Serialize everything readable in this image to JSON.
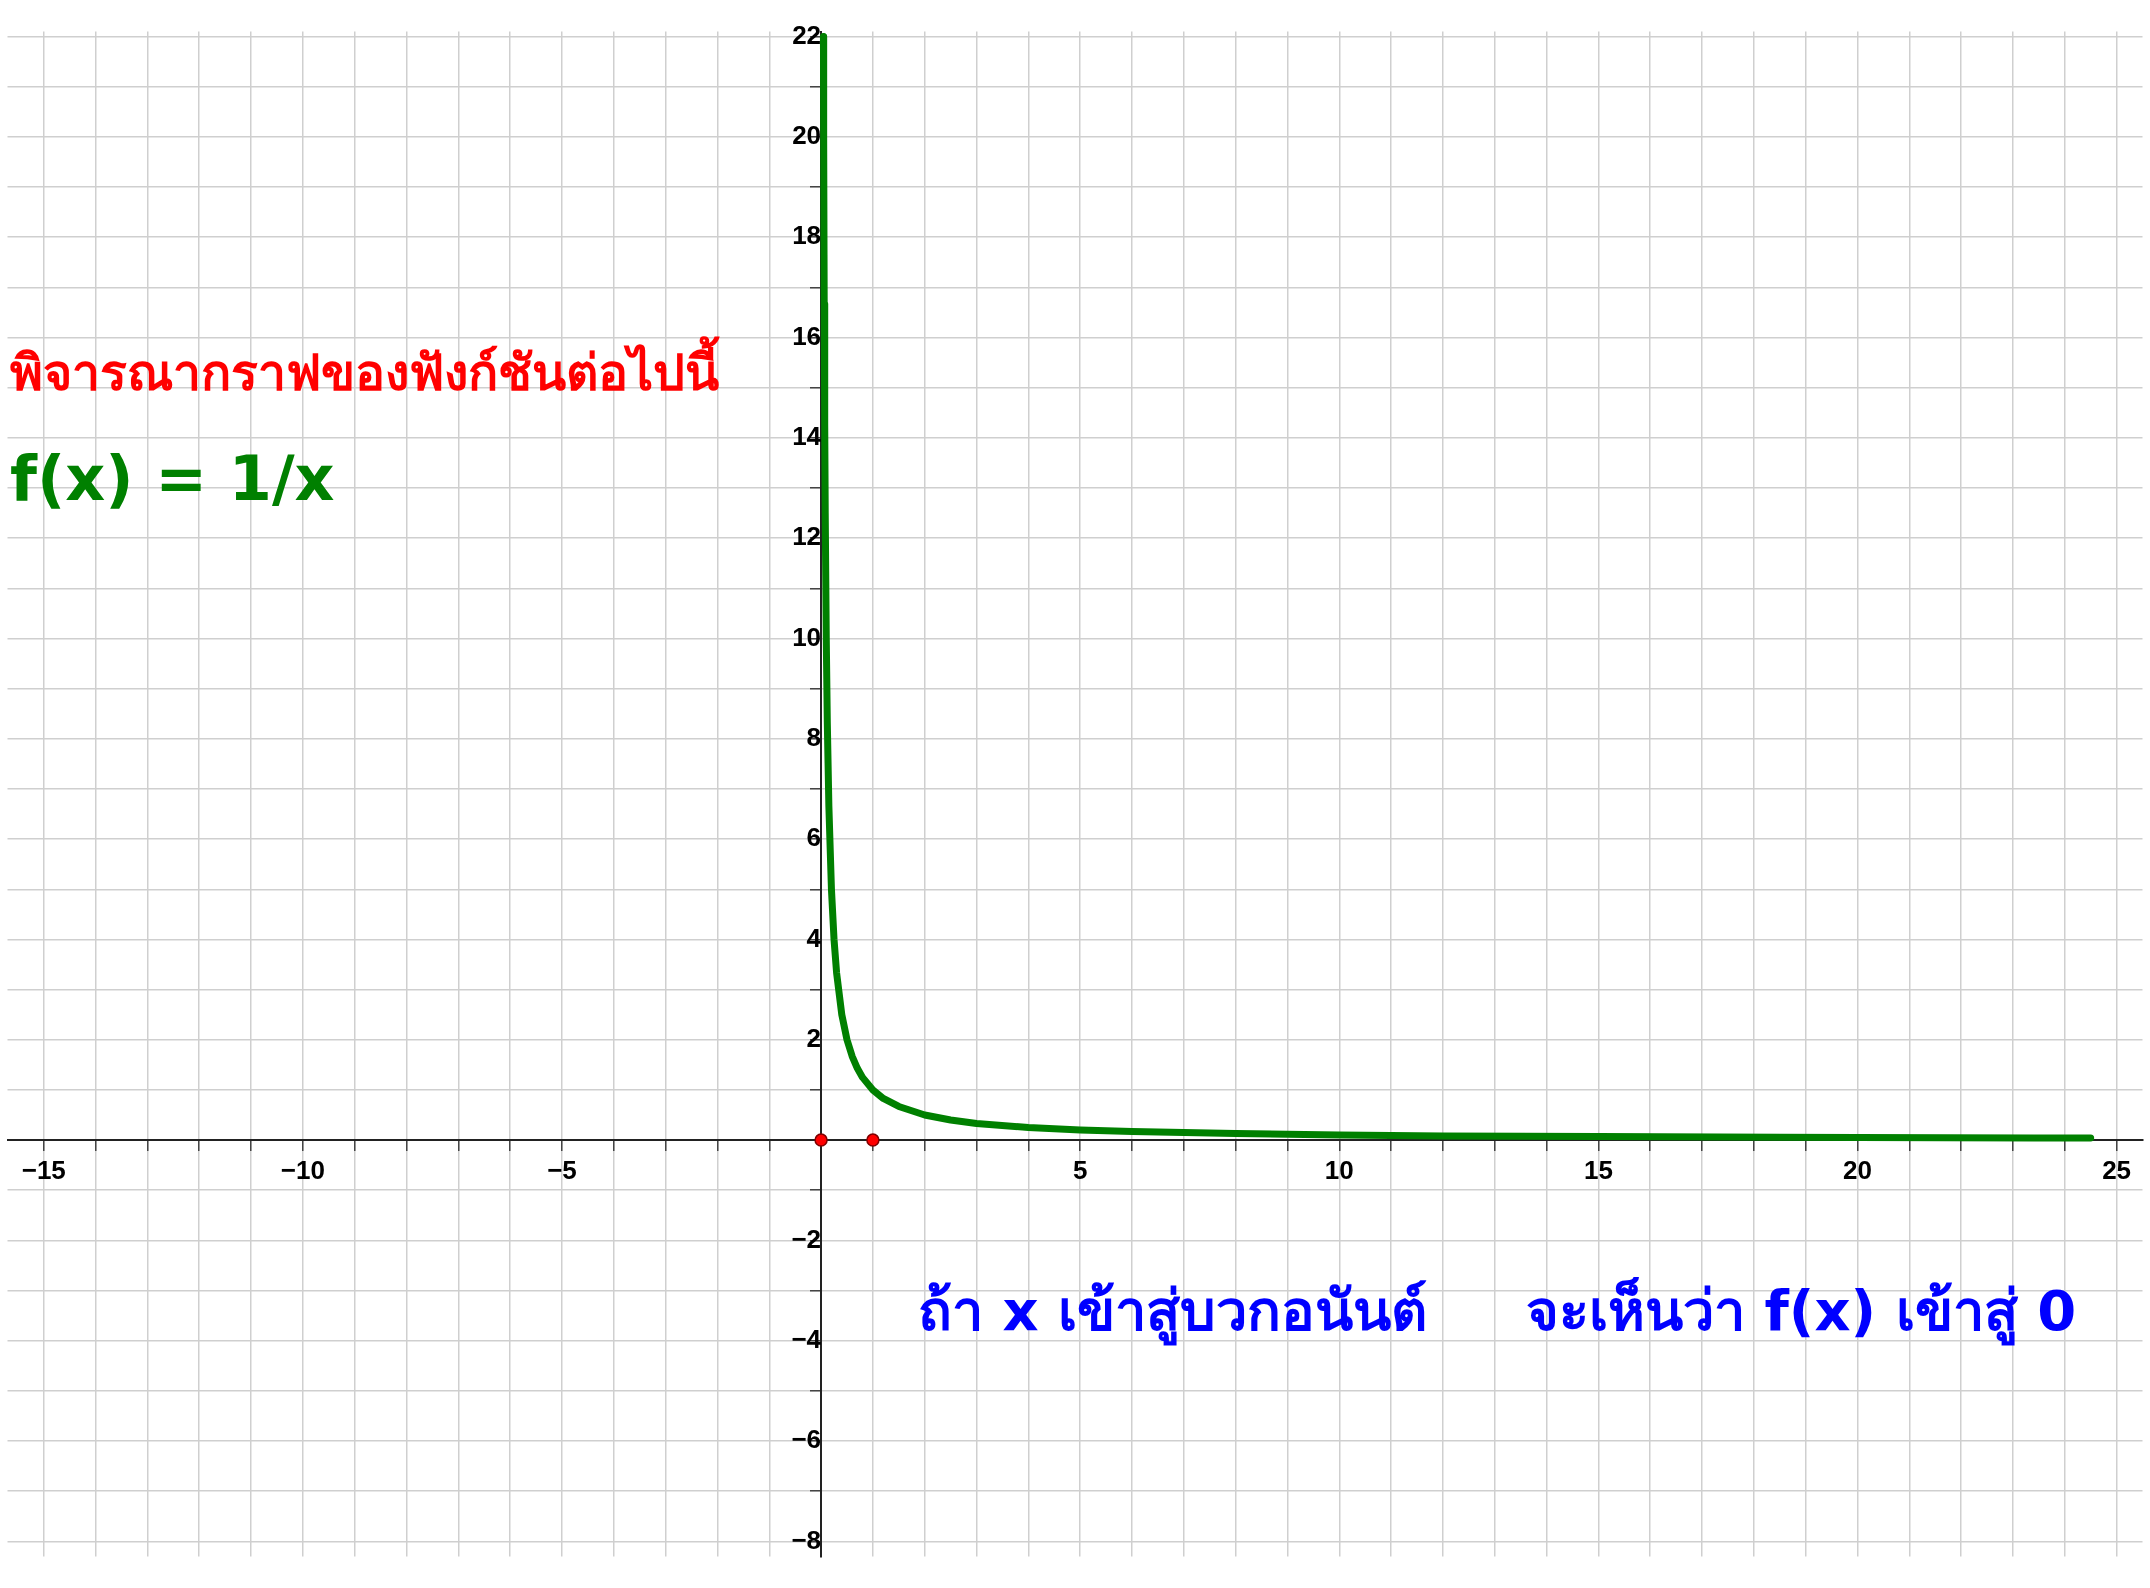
{
  "chart_data": {
    "type": "line",
    "title": "พิจารณากราฟของฟังก์ชันต่อไปนี้",
    "annotations": [
      "f(x) = 1/x",
      "ถ้า x เข้าสู่บวกอนันต์",
      "จะเห็นว่า f(x) เข้าสู่ 0"
    ],
    "xlim": [
      -15.7,
      25.5
    ],
    "ylim": [
      -8.3,
      22.1
    ],
    "xticks": [
      {
        "value": -15,
        "label": "−15"
      },
      {
        "value": -14,
        "label": null
      },
      {
        "value": -13,
        "label": null
      },
      {
        "value": -12,
        "label": null
      },
      {
        "value": -11,
        "label": null
      },
      {
        "value": -10,
        "label": "−10"
      },
      {
        "value": -9,
        "label": null
      },
      {
        "value": -8,
        "label": null
      },
      {
        "value": -7,
        "label": null
      },
      {
        "value": -6,
        "label": null
      },
      {
        "value": -5,
        "label": "−5"
      },
      {
        "value": -4,
        "label": null
      },
      {
        "value": -3,
        "label": null
      },
      {
        "value": -2,
        "label": null
      },
      {
        "value": -1,
        "label": null
      },
      {
        "value": 0,
        "label": null
      },
      {
        "value": 1,
        "label": null
      },
      {
        "value": 2,
        "label": null
      },
      {
        "value": 3,
        "label": null
      },
      {
        "value": 4,
        "label": null
      },
      5,
      {
        "value": 6,
        "label": null
      },
      {
        "value": 7,
        "label": null
      },
      {
        "value": 8,
        "label": null
      },
      {
        "value": 9,
        "label": null
      },
      10,
      {
        "value": 11,
        "label": null
      },
      {
        "value": 12,
        "label": null
      },
      {
        "value": 13,
        "label": null
      },
      {
        "value": 14,
        "label": null
      },
      15,
      {
        "value": 16,
        "label": null
      },
      {
        "value": 17,
        "label": null
      },
      {
        "value": 18,
        "label": null
      },
      {
        "value": 19,
        "label": null
      },
      20,
      {
        "value": 21,
        "label": null
      },
      {
        "value": 22,
        "label": null
      },
      {
        "value": 23,
        "label": null
      },
      {
        "value": 24,
        "label": null
      },
      25
    ],
    "yticks": [
      {
        "value": -8,
        "label": "−8"
      },
      {
        "value": -7,
        "label": null
      },
      {
        "value": -6,
        "label": "−6"
      },
      {
        "value": -5,
        "label": null
      },
      {
        "value": -4,
        "label": "−4"
      },
      {
        "value": -3,
        "label": null
      },
      {
        "value": -2,
        "label": "−2"
      },
      {
        "value": -1,
        "label": null
      },
      {
        "value": 0,
        "label": null
      },
      {
        "value": 1,
        "label": null
      },
      2,
      {
        "value": 3,
        "label": null
      },
      4,
      {
        "value": 5,
        "label": null
      },
      6,
      {
        "value": 7,
        "label": null
      },
      8,
      {
        "value": 9,
        "label": null
      },
      10,
      {
        "value": 11,
        "label": null
      },
      12,
      {
        "value": 13,
        "label": null
      },
      14,
      {
        "value": 15,
        "label": null
      },
      16,
      {
        "value": 17,
        "label": null
      },
      18,
      {
        "value": 19,
        "label": null
      },
      20,
      {
        "value": 21,
        "label": null
      },
      22
    ],
    "grid": true,
    "series": [
      {
        "color": "#008000",
        "marker": "none",
        "x": [
          0.0455,
          0.05,
          0.06,
          0.07,
          0.08,
          0.1,
          0.12,
          0.15,
          0.2,
          0.25,
          0.3,
          0.4,
          0.5,
          0.6,
          0.7,
          0.8,
          1,
          1.2,
          1.5,
          2,
          2.5,
          3,
          4,
          5,
          6,
          8,
          10,
          12,
          15,
          20,
          24.5
        ],
        "values": [
          22,
          20,
          16.67,
          14.29,
          12.5,
          10,
          8.33,
          6.67,
          5,
          4,
          3.33,
          2.5,
          2,
          1.67,
          1.43,
          1.25,
          1,
          0.83,
          0.67,
          0.5,
          0.4,
          0.33,
          0.25,
          0.2,
          0.17,
          0.13,
          0.1,
          0.08,
          0.07,
          0.05,
          0.04
        ]
      },
      {
        "type": "scatter",
        "color": "#ff0000",
        "marker": "circle",
        "x": [
          0,
          1
        ],
        "values": [
          0,
          0
        ]
      }
    ]
  }
}
